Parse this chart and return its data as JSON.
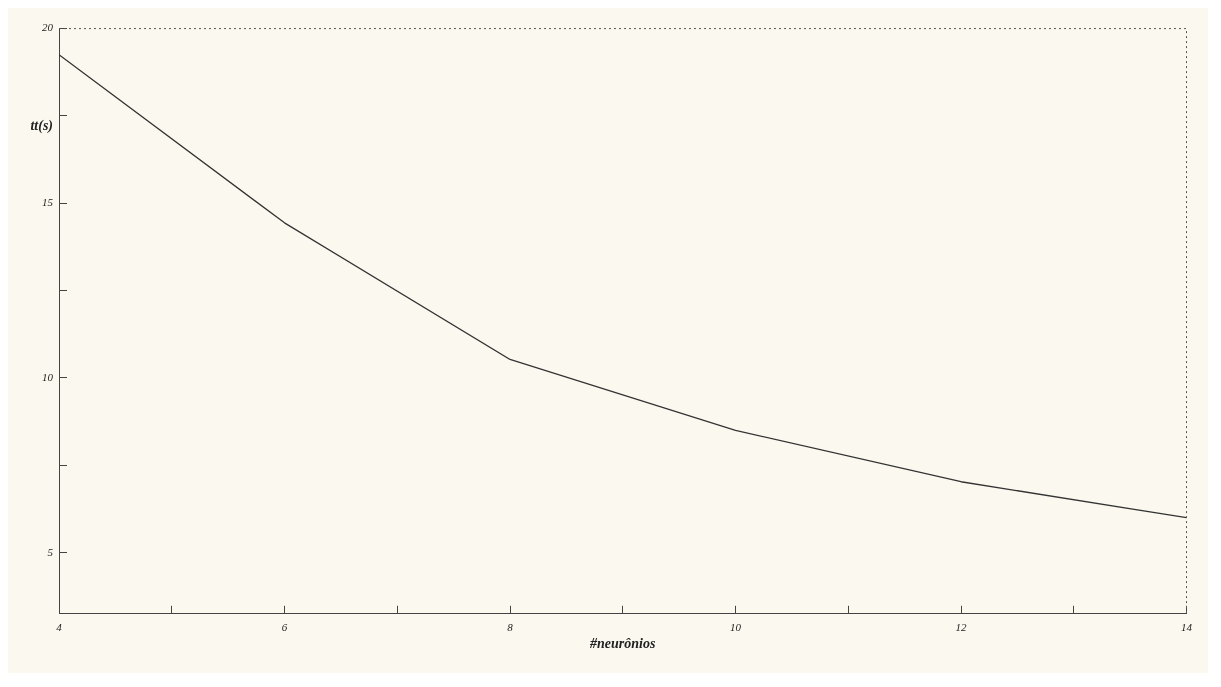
{
  "chart_data": {
    "type": "line",
    "xlabel": "#neurônios",
    "ylabel": "tt(s)",
    "x": [
      4,
      6,
      8,
      10,
      12,
      14
    ],
    "series": [
      {
        "color": "#333333",
        "values": [
          19.25,
          14.44,
          10.53,
          8.5,
          7.03,
          6.0
        ]
      }
    ],
    "xlim": [
      4,
      14
    ],
    "xticks": [
      4,
      {
        "value": 5,
        "label": null
      },
      6,
      {
        "value": 7,
        "label": null
      },
      8,
      {
        "value": 9,
        "label": null
      },
      10,
      {
        "value": 11,
        "label": null
      },
      12,
      {
        "value": 13,
        "label": null
      },
      14
    ],
    "ylim": [
      3.25,
      20
    ],
    "yticks": [
      5,
      {
        "value": 7.5,
        "label": null
      },
      10,
      {
        "value": 12.5,
        "label": null
      },
      15,
      {
        "value": 17.5,
        "label": null
      },
      20
    ],
    "grid": false,
    "legend": false,
    "marker": "none",
    "line_style": "solid"
  }
}
